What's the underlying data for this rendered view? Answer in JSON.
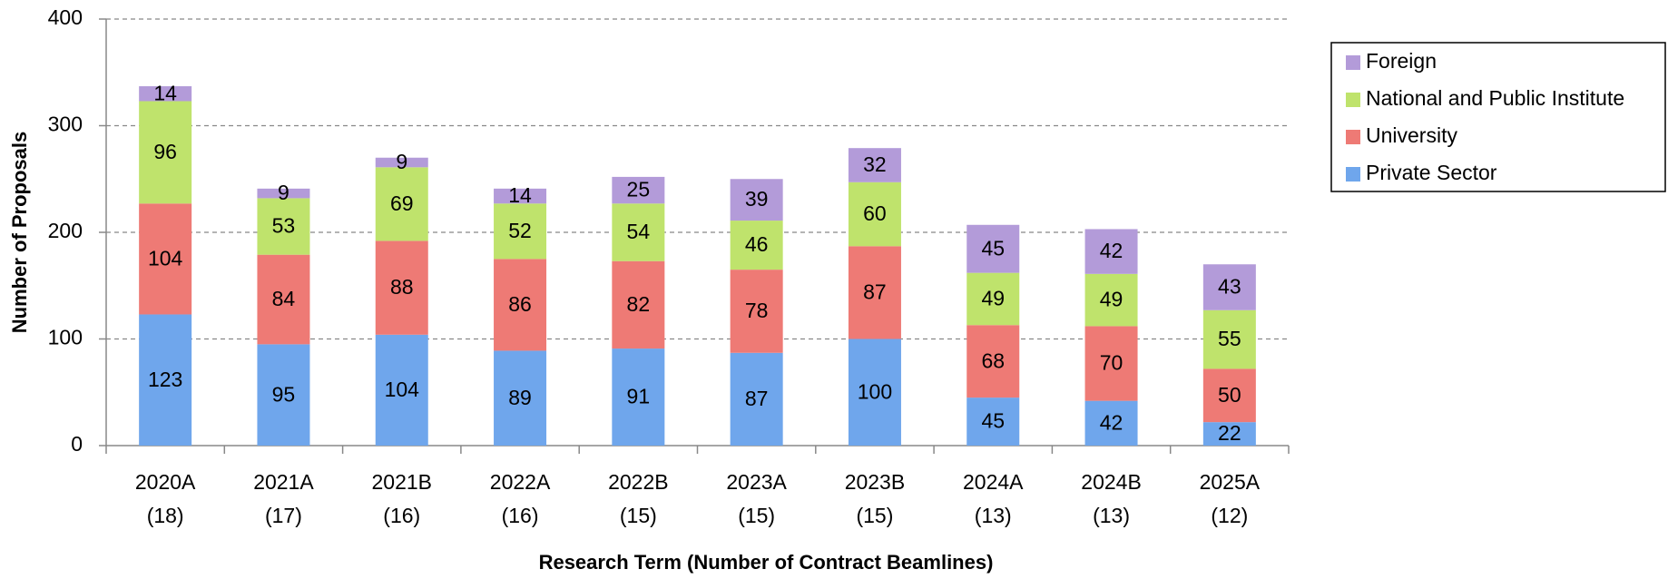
{
  "chart_data": {
    "type": "stacked_bar",
    "x_label": "Research Term (Number of Contract Beamlines)",
    "y_label": "Number of Proposals",
    "categories": [
      [
        "2020A",
        "(18)"
      ],
      [
        "2021A",
        "(17)"
      ],
      [
        "2021B",
        "(16)"
      ],
      [
        "2022A",
        "(16)"
      ],
      [
        "2022B",
        "(15)"
      ],
      [
        "2023A",
        "(15)"
      ],
      [
        "2023B",
        "(15)"
      ],
      [
        "2024A",
        "(13)"
      ],
      [
        "2024B",
        "(13)"
      ],
      [
        "2025A",
        "(12)"
      ]
    ],
    "series": [
      {
        "name": "Private Sector",
        "color": "#6fa6ec",
        "values": [
          123,
          95,
          104,
          89,
          91,
          87,
          100,
          45,
          42,
          22
        ]
      },
      {
        "name": "University",
        "color": "#ee7a75",
        "values": [
          104,
          84,
          88,
          86,
          82,
          78,
          87,
          68,
          70,
          50
        ]
      },
      {
        "name": "National and Public Institute",
        "color": "#bfe36c",
        "values": [
          96,
          53,
          69,
          52,
          54,
          46,
          60,
          49,
          49,
          55
        ]
      },
      {
        "name": "Foreign",
        "color": "#b39bd9",
        "values": [
          14,
          9,
          9,
          14,
          25,
          39,
          32,
          45,
          42,
          43
        ]
      }
    ],
    "ylim": [
      0,
      400
    ],
    "yticks": [
      0,
      100,
      200,
      300,
      400
    ],
    "grid": true,
    "legend": "right"
  }
}
